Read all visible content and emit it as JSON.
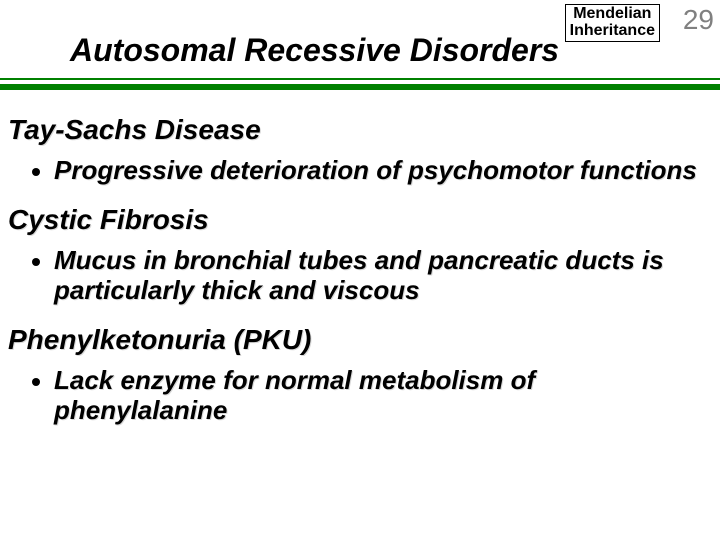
{
  "badge": {
    "line1": "Mendelian",
    "line2": "Inheritance"
  },
  "pagenum": "29",
  "title": "Autosomal Recessive Disorders",
  "sections": [
    {
      "heading": "Tay-Sachs Disease",
      "bullet": "Progressive deterioration of psychomotor functions"
    },
    {
      "heading": "Cystic Fibrosis",
      "bullet": "Mucus in bronchial tubes and pancreatic ducts is particularly thick and viscous"
    },
    {
      "heading": "Phenylketonuria (PKU)",
      "bullet": "Lack enzyme for normal metabolism of phenylalanine"
    }
  ],
  "colors": {
    "rule": "#008000",
    "text": "#000000",
    "pagenum": "#808080",
    "background": "#ffffff"
  }
}
